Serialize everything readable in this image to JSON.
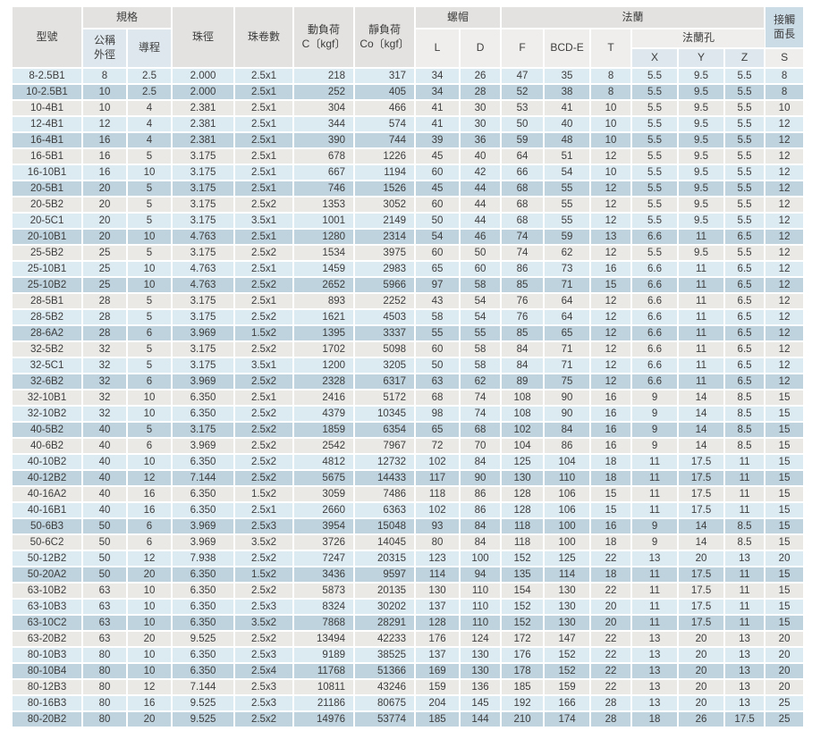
{
  "table": {
    "header": {
      "model": "型號",
      "spec_group": "規格",
      "nominal_od_line1": "公稱",
      "nominal_od_line2": "外徑",
      "lead": "導程",
      "ball_diameter": "珠徑",
      "ball_circuits": "珠卷數",
      "dynamic_load_line1": "動負荷",
      "dynamic_load_line2": "C〔kgf〕",
      "static_load_line1": "靜負荷",
      "static_load_line2": "Co〔kgf〕",
      "nut_group": "螺帽",
      "nut_l": "L",
      "nut_d": "D",
      "flange_group": "法蘭",
      "flange_f": "F",
      "flange_bcd_e": "BCD-E",
      "flange_t": "T",
      "flange_holes_group": "法蘭孔",
      "hole_x": "X",
      "hole_y": "Y",
      "hole_z": "Z",
      "contact_line1": "接觸",
      "contact_line2": "面長",
      "contact_s": "S"
    },
    "col_keys": [
      "model",
      "nominal_od",
      "lead",
      "ball_dia",
      "ball_circuits",
      "dynamic_load_c",
      "static_load_co",
      "nut_l",
      "nut_d",
      "flange_f",
      "flange_bcd_e",
      "flange_t",
      "hole_x",
      "hole_y",
      "hole_z",
      "contact_s"
    ],
    "colors": {
      "row_light": "#dceaf2",
      "row_dark": "#bed3de",
      "row_gray": "#eae9e6",
      "header_gray": "#e3e2e0",
      "header_blue": "#dde7ed",
      "header_white": "#efeeec",
      "header_contact": "#ccdce7",
      "text": "#3d3d3d"
    },
    "rows": [
      [
        "8-2.5B1",
        "8",
        "2.5",
        "2.000",
        "2.5x1",
        "218",
        "317",
        "34",
        "26",
        "47",
        "35",
        "8",
        "5.5",
        "9.5",
        "5.5",
        "8"
      ],
      [
        "10-2.5B1",
        "10",
        "2.5",
        "2.000",
        "2.5x1",
        "252",
        "405",
        "34",
        "28",
        "52",
        "38",
        "8",
        "5.5",
        "9.5",
        "5.5",
        "8"
      ],
      [
        "10-4B1",
        "10",
        "4",
        "2.381",
        "2.5x1",
        "304",
        "466",
        "41",
        "30",
        "53",
        "41",
        "10",
        "5.5",
        "9.5",
        "5.5",
        "10"
      ],
      [
        "12-4B1",
        "12",
        "4",
        "2.381",
        "2.5x1",
        "344",
        "574",
        "41",
        "30",
        "50",
        "40",
        "10",
        "5.5",
        "9.5",
        "5.5",
        "12"
      ],
      [
        "16-4B1",
        "16",
        "4",
        "2.381",
        "2.5x1",
        "390",
        "744",
        "39",
        "36",
        "59",
        "48",
        "10",
        "5.5",
        "9.5",
        "5.5",
        "12"
      ],
      [
        "16-5B1",
        "16",
        "5",
        "3.175",
        "2.5x1",
        "678",
        "1226",
        "45",
        "40",
        "64",
        "51",
        "12",
        "5.5",
        "9.5",
        "5.5",
        "12"
      ],
      [
        "16-10B1",
        "16",
        "10",
        "3.175",
        "2.5x1",
        "667",
        "1194",
        "60",
        "42",
        "66",
        "54",
        "10",
        "5.5",
        "9.5",
        "5.5",
        "12"
      ],
      [
        "20-5B1",
        "20",
        "5",
        "3.175",
        "2.5x1",
        "746",
        "1526",
        "45",
        "44",
        "68",
        "55",
        "12",
        "5.5",
        "9.5",
        "5.5",
        "12"
      ],
      [
        "20-5B2",
        "20",
        "5",
        "3.175",
        "2.5x2",
        "1353",
        "3052",
        "60",
        "44",
        "68",
        "55",
        "12",
        "5.5",
        "9.5",
        "5.5",
        "12"
      ],
      [
        "20-5C1",
        "20",
        "5",
        "3.175",
        "3.5x1",
        "1001",
        "2149",
        "50",
        "44",
        "68",
        "55",
        "12",
        "5.5",
        "9.5",
        "5.5",
        "12"
      ],
      [
        "20-10B1",
        "20",
        "10",
        "4.763",
        "2.5x1",
        "1280",
        "2314",
        "54",
        "46",
        "74",
        "59",
        "13",
        "6.6",
        "11",
        "6.5",
        "12"
      ],
      [
        "25-5B2",
        "25",
        "5",
        "3.175",
        "2.5x2",
        "1534",
        "3975",
        "60",
        "50",
        "74",
        "62",
        "12",
        "5.5",
        "9.5",
        "5.5",
        "12"
      ],
      [
        "25-10B1",
        "25",
        "10",
        "4.763",
        "2.5x1",
        "1459",
        "2983",
        "65",
        "60",
        "86",
        "73",
        "16",
        "6.6",
        "11",
        "6.5",
        "12"
      ],
      [
        "25-10B2",
        "25",
        "10",
        "4.763",
        "2.5x2",
        "2652",
        "5966",
        "97",
        "58",
        "85",
        "71",
        "15",
        "6.6",
        "11",
        "6.5",
        "12"
      ],
      [
        "28-5B1",
        "28",
        "5",
        "3.175",
        "2.5x1",
        "893",
        "2252",
        "43",
        "54",
        "76",
        "64",
        "12",
        "6.6",
        "11",
        "6.5",
        "12"
      ],
      [
        "28-5B2",
        "28",
        "5",
        "3.175",
        "2.5x2",
        "1621",
        "4503",
        "58",
        "54",
        "76",
        "64",
        "12",
        "6.6",
        "11",
        "6.5",
        "12"
      ],
      [
        "28-6A2",
        "28",
        "6",
        "3.969",
        "1.5x2",
        "1395",
        "3337",
        "55",
        "55",
        "85",
        "65",
        "12",
        "6.6",
        "11",
        "6.5",
        "12"
      ],
      [
        "32-5B2",
        "32",
        "5",
        "3.175",
        "2.5x2",
        "1702",
        "5098",
        "60",
        "58",
        "84",
        "71",
        "12",
        "6.6",
        "11",
        "6.5",
        "12"
      ],
      [
        "32-5C1",
        "32",
        "5",
        "3.175",
        "3.5x1",
        "1200",
        "3205",
        "50",
        "58",
        "84",
        "71",
        "12",
        "6.6",
        "11",
        "6.5",
        "12"
      ],
      [
        "32-6B2",
        "32",
        "6",
        "3.969",
        "2.5x2",
        "2328",
        "6317",
        "63",
        "62",
        "89",
        "75",
        "12",
        "6.6",
        "11",
        "6.5",
        "12"
      ],
      [
        "32-10B1",
        "32",
        "10",
        "6.350",
        "2.5x1",
        "2416",
        "5172",
        "68",
        "74",
        "108",
        "90",
        "16",
        "9",
        "14",
        "8.5",
        "15"
      ],
      [
        "32-10B2",
        "32",
        "10",
        "6.350",
        "2.5x2",
        "4379",
        "10345",
        "98",
        "74",
        "108",
        "90",
        "16",
        "9",
        "14",
        "8.5",
        "15"
      ],
      [
        "40-5B2",
        "40",
        "5",
        "3.175",
        "2.5x2",
        "1859",
        "6354",
        "65",
        "68",
        "102",
        "84",
        "16",
        "9",
        "14",
        "8.5",
        "15"
      ],
      [
        "40-6B2",
        "40",
        "6",
        "3.969",
        "2.5x2",
        "2542",
        "7967",
        "72",
        "70",
        "104",
        "86",
        "16",
        "9",
        "14",
        "8.5",
        "15"
      ],
      [
        "40-10B2",
        "40",
        "10",
        "6.350",
        "2.5x2",
        "4812",
        "12732",
        "102",
        "84",
        "125",
        "104",
        "18",
        "11",
        "17.5",
        "11",
        "15"
      ],
      [
        "40-12B2",
        "40",
        "12",
        "7.144",
        "2.5x2",
        "5675",
        "14433",
        "117",
        "90",
        "130",
        "110",
        "18",
        "11",
        "17.5",
        "11",
        "15"
      ],
      [
        "40-16A2",
        "40",
        "16",
        "6.350",
        "1.5x2",
        "3059",
        "7486",
        "118",
        "86",
        "128",
        "106",
        "15",
        "11",
        "17.5",
        "11",
        "15"
      ],
      [
        "40-16B1",
        "40",
        "16",
        "6.350",
        "2.5x1",
        "2660",
        "6363",
        "102",
        "86",
        "128",
        "106",
        "15",
        "11",
        "17.5",
        "11",
        "15"
      ],
      [
        "50-6B3",
        "50",
        "6",
        "3.969",
        "2.5x3",
        "3954",
        "15048",
        "93",
        "84",
        "118",
        "100",
        "16",
        "9",
        "14",
        "8.5",
        "15"
      ],
      [
        "50-6C2",
        "50",
        "6",
        "3.969",
        "3.5x2",
        "3726",
        "14045",
        "80",
        "84",
        "118",
        "100",
        "18",
        "9",
        "14",
        "8.5",
        "15"
      ],
      [
        "50-12B2",
        "50",
        "12",
        "7.938",
        "2.5x2",
        "7247",
        "20315",
        "123",
        "100",
        "152",
        "125",
        "22",
        "13",
        "20",
        "13",
        "20"
      ],
      [
        "50-20A2",
        "50",
        "20",
        "6.350",
        "1.5x2",
        "3436",
        "9597",
        "114",
        "94",
        "135",
        "114",
        "18",
        "11",
        "17.5",
        "11",
        "15"
      ],
      [
        "63-10B2",
        "63",
        "10",
        "6.350",
        "2.5x2",
        "5873",
        "20135",
        "130",
        "110",
        "154",
        "130",
        "22",
        "11",
        "17.5",
        "11",
        "15"
      ],
      [
        "63-10B3",
        "63",
        "10",
        "6.350",
        "2.5x3",
        "8324",
        "30202",
        "137",
        "110",
        "152",
        "130",
        "20",
        "11",
        "17.5",
        "11",
        "15"
      ],
      [
        "63-10C2",
        "63",
        "10",
        "6.350",
        "3.5x2",
        "7868",
        "28291",
        "128",
        "110",
        "152",
        "130",
        "20",
        "11",
        "17.5",
        "11",
        "15"
      ],
      [
        "63-20B2",
        "63",
        "20",
        "9.525",
        "2.5x2",
        "13494",
        "42233",
        "176",
        "124",
        "172",
        "147",
        "22",
        "13",
        "20",
        "13",
        "20"
      ],
      [
        "80-10B3",
        "80",
        "10",
        "6.350",
        "2.5x3",
        "9189",
        "38525",
        "137",
        "130",
        "176",
        "152",
        "22",
        "13",
        "20",
        "13",
        "20"
      ],
      [
        "80-10B4",
        "80",
        "10",
        "6.350",
        "2.5x4",
        "11768",
        "51366",
        "169",
        "130",
        "178",
        "152",
        "22",
        "13",
        "20",
        "13",
        "20"
      ],
      [
        "80-12B3",
        "80",
        "12",
        "7.144",
        "2.5x3",
        "10811",
        "43246",
        "159",
        "136",
        "185",
        "159",
        "22",
        "13",
        "20",
        "13",
        "20"
      ],
      [
        "80-16B3",
        "80",
        "16",
        "9.525",
        "2.5x3",
        "21186",
        "80675",
        "204",
        "145",
        "192",
        "166",
        "28",
        "13",
        "20",
        "13",
        "25"
      ],
      [
        "80-20B2",
        "80",
        "20",
        "9.525",
        "2.5x2",
        "14976",
        "53774",
        "185",
        "144",
        "210",
        "174",
        "28",
        "18",
        "26",
        "17.5",
        "25"
      ]
    ]
  }
}
